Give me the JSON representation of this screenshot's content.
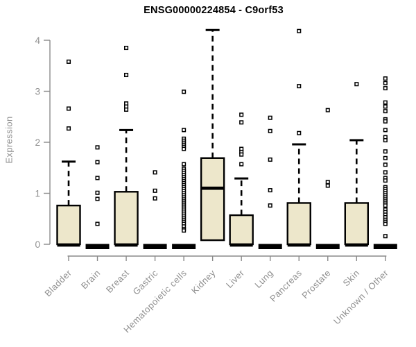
{
  "chart_data": {
    "type": "boxplot",
    "title": "ENSG00000224854 - C9orf53",
    "ylabel": "Expression",
    "xlabel": "",
    "ylim": [
      0,
      4.35
    ],
    "yticks": [
      0,
      1,
      2,
      3,
      4
    ],
    "grid": false,
    "legend": null,
    "colors": {
      "box_fill": "#EDE7CB",
      "box_border": "#000000",
      "median": "#000000",
      "whisker": "#000000",
      "outlier_fill": "#FFFFFF",
      "outlier_border": "#000000",
      "axis_line": "#8a8a8a",
      "tick_text": "#8f8f8f",
      "title_text": "#000000",
      "background": "#FFFFFF"
    },
    "categories": [
      "Bladder",
      "Brain",
      "Breast",
      "Gastric",
      "Hematopoietic cells",
      "Kidney",
      "Liver",
      "Lung",
      "Pancreas",
      "Prostate",
      "Skin",
      "Unknown / Other"
    ],
    "boxes": [
      {
        "category": "Bladder",
        "q1": 0,
        "median": 0.02,
        "q3": 0.76,
        "whisker_low": 0,
        "whisker_high": 1.62,
        "outliers": [
          3.58,
          2.66,
          2.27
        ]
      },
      {
        "category": "Brain",
        "q1": 0,
        "median": 0.01,
        "q3": 0.03,
        "whisker_low": 0,
        "whisker_high": 0.03,
        "outliers": [
          1.9,
          1.61,
          1.3,
          1.01,
          0.89,
          0.4
        ]
      },
      {
        "category": "Breast",
        "q1": 0,
        "median": 0.02,
        "q3": 1.03,
        "whisker_low": 0,
        "whisker_high": 2.24,
        "outliers": [
          3.85,
          3.32,
          2.76,
          2.7,
          2.64
        ]
      },
      {
        "category": "Gastric",
        "q1": 0,
        "median": 0.01,
        "q3": 0.03,
        "whisker_low": 0,
        "whisker_high": 0.03,
        "outliers": [
          1.41,
          1.05,
          0.9
        ]
      },
      {
        "category": "Hematopoietic cells",
        "q1": 0,
        "median": 0.01,
        "q3": 0.03,
        "whisker_low": 0,
        "whisker_high": 0.03,
        "outliers": [
          2.99,
          2.24,
          2.07,
          2.03,
          1.99,
          1.95,
          1.91,
          1.87,
          1.57,
          1.48,
          1.44,
          1.4,
          1.36,
          1.32,
          1.28,
          1.24,
          1.2,
          1.16,
          1.12,
          1.08,
          1.04,
          1.0,
          0.96,
          0.92,
          0.88,
          0.84,
          0.8,
          0.76,
          0.72,
          0.68,
          0.64,
          0.6,
          0.56,
          0.52,
          0.48,
          0.44,
          0.4,
          0.35,
          0.3,
          0.27
        ]
      },
      {
        "category": "Kidney",
        "q1": 0.08,
        "median": 1.1,
        "q3": 1.69,
        "whisker_low": 0.08,
        "whisker_high": 4.2,
        "outliers": []
      },
      {
        "category": "Liver",
        "q1": 0,
        "median": 0.02,
        "q3": 0.57,
        "whisker_low": 0,
        "whisker_high": 1.29,
        "outliers": [
          2.54,
          2.39,
          1.87,
          1.81,
          1.76,
          1.57
        ]
      },
      {
        "category": "Lung",
        "q1": 0,
        "median": 0.01,
        "q3": 0.03,
        "whisker_low": 0,
        "whisker_high": 0.03,
        "outliers": [
          2.48,
          2.22,
          1.66,
          1.06,
          0.76
        ]
      },
      {
        "category": "Pancreas",
        "q1": 0,
        "median": 0.02,
        "q3": 0.81,
        "whisker_low": 0,
        "whisker_high": 1.96,
        "outliers": [
          4.18,
          3.1,
          2.18
        ]
      },
      {
        "category": "Prostate",
        "q1": 0,
        "median": 0.01,
        "q3": 0.03,
        "whisker_low": 0,
        "whisker_high": 0.03,
        "outliers": [
          2.63,
          1.22,
          1.15
        ]
      },
      {
        "category": "Skin",
        "q1": 0,
        "median": 0.02,
        "q3": 0.81,
        "whisker_low": 0,
        "whisker_high": 2.04,
        "outliers": [
          3.14
        ]
      },
      {
        "category": "Unknown / Other",
        "q1": 0,
        "median": 0.01,
        "q3": 0.03,
        "whisker_low": 0,
        "whisker_high": 0.03,
        "outliers": [
          3.25,
          3.16,
          3.06,
          2.78,
          2.7,
          2.61,
          2.45,
          2.41,
          2.24,
          2.1,
          2.04,
          1.82,
          1.69,
          1.56,
          1.41,
          1.3,
          1.25,
          1.12,
          1.08,
          1.04,
          1.0,
          0.96,
          0.92,
          0.88,
          0.84,
          0.8,
          0.76,
          0.68,
          0.63,
          0.58,
          0.53,
          0.48,
          0.44,
          0.4,
          0.16
        ]
      }
    ]
  }
}
